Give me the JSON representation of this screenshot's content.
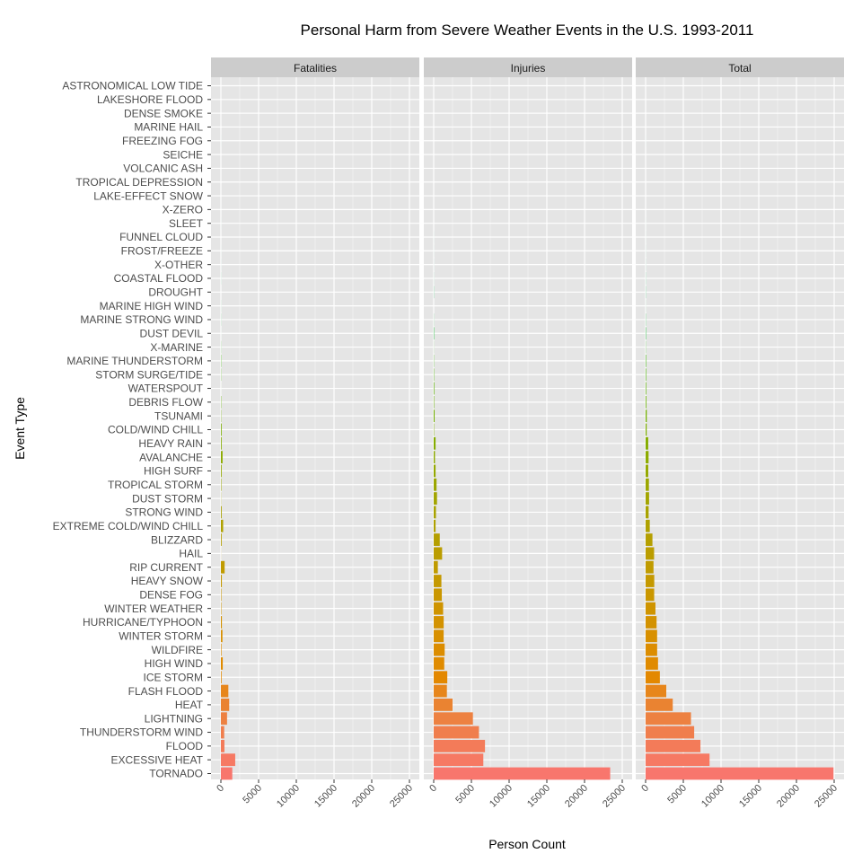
{
  "chart_data": {
    "type": "bar",
    "orientation": "horizontal",
    "title": "Personal Harm from Severe Weather Events in the U.S. 1993-2011",
    "xlabel": "Person Count",
    "ylabel": "Event Type",
    "xlim": [
      0,
      25000
    ],
    "x_ticks": [
      0,
      5000,
      10000,
      15000,
      20000,
      25000
    ],
    "grid": true,
    "legend": "none",
    "panels": [
      "Fatalities",
      "Injuries",
      "Total"
    ],
    "categories": [
      "ASTRONOMICAL LOW TIDE",
      "LAKESHORE FLOOD",
      "DENSE SMOKE",
      "MARINE HAIL",
      "FREEZING FOG",
      "SEICHE",
      "VOLCANIC ASH",
      "TROPICAL DEPRESSION",
      "LAKE-EFFECT SNOW",
      "X-ZERO",
      "SLEET",
      "FUNNEL CLOUD",
      "FROST/FREEZE",
      "X-OTHER",
      "COASTAL FLOOD",
      "DROUGHT",
      "MARINE HIGH WIND",
      "MARINE STRONG WIND",
      "DUST DEVIL",
      "X-MARINE",
      "MARINE THUNDERSTORM",
      "STORM SURGE/TIDE",
      "WATERSPOUT",
      "DEBRIS FLOW",
      "TSUNAMI",
      "COLD/WIND CHILL",
      "HEAVY RAIN",
      "AVALANCHE",
      "HIGH SURF",
      "TROPICAL STORM",
      "DUST STORM",
      "STRONG WIND",
      "EXTREME COLD/WIND CHILL",
      "BLIZZARD",
      "HAIL",
      "RIP CURRENT",
      "HEAVY SNOW",
      "DENSE FOG",
      "WINTER WEATHER",
      "HURRICANE/TYPHOON",
      "WINTER STORM",
      "WILDFIRE",
      "HIGH WIND",
      "ICE STORM",
      "FLASH FLOOD",
      "HEAT",
      "LIGHTNING",
      "THUNDERSTORM WIND",
      "FLOOD",
      "EXCESSIVE HEAT",
      "TORNADO"
    ],
    "series": [
      {
        "name": "Fatalities",
        "values": [
          0,
          0,
          0,
          0,
          2,
          0,
          0,
          0,
          0,
          1,
          2,
          0,
          2,
          3,
          6,
          0,
          5,
          10,
          2,
          12,
          31,
          24,
          3,
          38,
          33,
          95,
          98,
          224,
          101,
          58,
          22,
          103,
          300,
          101,
          10,
          498,
          127,
          62,
          56,
          131,
          206,
          75,
          247,
          89,
          990,
          1100,
          817,
          440,
          470,
          1900,
          1510
        ]
      },
      {
        "name": "Injuries",
        "values": [
          0,
          0,
          0,
          0,
          0,
          0,
          0,
          0,
          0,
          0,
          0,
          3,
          3,
          4,
          7,
          19,
          1,
          12,
          42,
          10,
          28,
          43,
          73,
          55,
          120,
          48,
          251,
          170,
          252,
          380,
          440,
          300,
          252,
          805,
          1115,
          550,
          1021,
          1076,
          1250,
          1325,
          1320,
          1456,
          1400,
          1800,
          1750,
          2500,
          5200,
          6000,
          6800,
          6580,
          23400
        ]
      },
      {
        "name": "Total",
        "values": [
          0,
          0,
          0,
          0,
          2,
          0,
          0,
          0,
          0,
          1,
          2,
          3,
          5,
          7,
          13,
          19,
          6,
          22,
          44,
          22,
          59,
          67,
          76,
          93,
          153,
          143,
          349,
          394,
          353,
          438,
          462,
          403,
          552,
          906,
          1125,
          1048,
          1148,
          1138,
          1306,
          1456,
          1526,
          1531,
          1647,
          1889,
          2740,
          3600,
          6017,
          6440,
          7270,
          8480,
          24910
        ]
      }
    ]
  },
  "colors": {
    "panel_bg": "#e5e5e5",
    "strip_bg": "#cccccc",
    "grid": "#f5f5f5",
    "bar_hue_start": 15,
    "bar_hue_end": 195
  }
}
